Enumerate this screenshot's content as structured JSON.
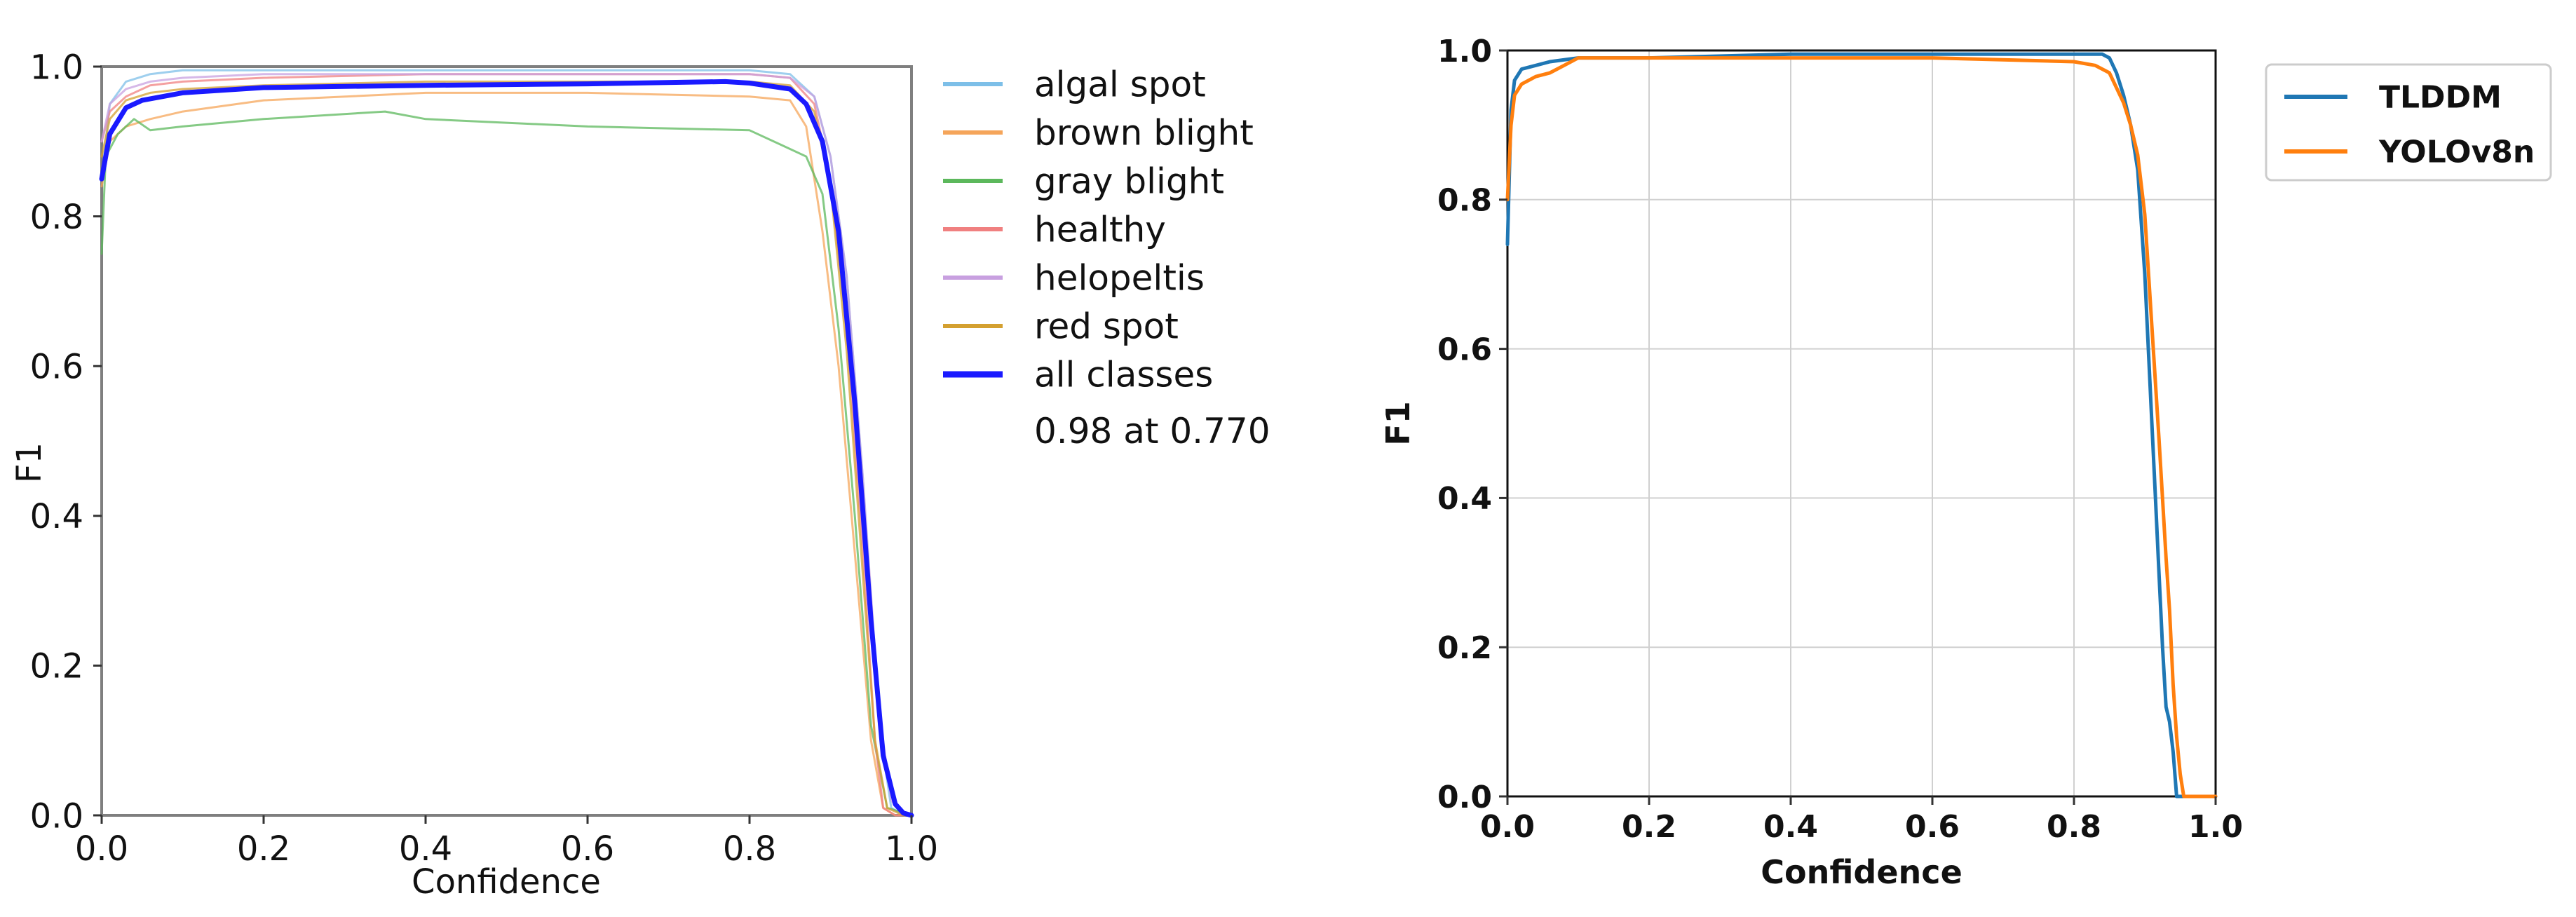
{
  "charts": [
    {
      "type": "line",
      "title": "",
      "xlabel": "Confidence",
      "ylabel": "F1",
      "xlim": [
        0,
        1
      ],
      "ylim": [
        0,
        1
      ],
      "xticks": [
        "0.0",
        "0.2",
        "0.4",
        "0.6",
        "0.8",
        "1.0"
      ],
      "yticks": [
        "0.0",
        "0.2",
        "0.4",
        "0.6",
        "0.8",
        "1.0"
      ],
      "grid": false,
      "legend_position": "outside-right",
      "legend_extra_text": "0.98 at 0.770",
      "series": [
        {
          "name": "algal spot",
          "color": "#7dbfe8",
          "width": 3,
          "opacity": 0.75,
          "x": [
            0,
            0.01,
            0.03,
            0.06,
            0.1,
            0.2,
            0.4,
            0.6,
            0.8,
            0.85,
            0.88,
            0.9,
            0.92,
            0.94,
            0.96,
            0.975,
            0.99,
            1.0
          ],
          "y": [
            0.85,
            0.95,
            0.98,
            0.99,
            0.995,
            0.995,
            0.995,
            0.995,
            0.995,
            0.99,
            0.96,
            0.88,
            0.72,
            0.45,
            0.12,
            0.01,
            0,
            0
          ]
        },
        {
          "name": "brown blight",
          "color": "#f5a55a",
          "width": 3,
          "opacity": 0.75,
          "x": [
            0,
            0.01,
            0.03,
            0.06,
            0.1,
            0.2,
            0.4,
            0.6,
            0.8,
            0.85,
            0.87,
            0.89,
            0.91,
            0.93,
            0.95,
            0.965,
            0.98,
            1.0
          ],
          "y": [
            0.84,
            0.9,
            0.92,
            0.93,
            0.94,
            0.955,
            0.965,
            0.965,
            0.96,
            0.955,
            0.92,
            0.78,
            0.6,
            0.35,
            0.1,
            0.01,
            0,
            0
          ]
        },
        {
          "name": "gray blight",
          "color": "#5cb85c",
          "width": 3,
          "opacity": 0.75,
          "x": [
            0,
            0.005,
            0.02,
            0.04,
            0.06,
            0.1,
            0.2,
            0.35,
            0.4,
            0.6,
            0.8,
            0.84,
            0.87,
            0.89,
            0.91,
            0.93,
            0.95,
            0.97,
            1.0
          ],
          "y": [
            0.75,
            0.88,
            0.91,
            0.93,
            0.915,
            0.92,
            0.93,
            0.94,
            0.93,
            0.92,
            0.915,
            0.895,
            0.88,
            0.83,
            0.65,
            0.4,
            0.12,
            0.01,
            0
          ]
        },
        {
          "name": "healthy",
          "color": "#f08080",
          "width": 3,
          "opacity": 0.75,
          "x": [
            0,
            0.01,
            0.03,
            0.06,
            0.1,
            0.2,
            0.4,
            0.6,
            0.8,
            0.85,
            0.88,
            0.9,
            0.92,
            0.94,
            0.955,
            0.965,
            0.98,
            1.0
          ],
          "y": [
            0.9,
            0.94,
            0.96,
            0.975,
            0.98,
            0.985,
            0.99,
            0.99,
            0.99,
            0.985,
            0.95,
            0.85,
            0.65,
            0.35,
            0.1,
            0.01,
            0,
            0
          ]
        },
        {
          "name": "helopeltis",
          "color": "#c8a0e0",
          "width": 3,
          "opacity": 0.75,
          "x": [
            0,
            0.01,
            0.03,
            0.06,
            0.1,
            0.2,
            0.4,
            0.6,
            0.8,
            0.85,
            0.88,
            0.9,
            0.92,
            0.94,
            0.96,
            0.975,
            0.99,
            1.0
          ],
          "y": [
            0.9,
            0.95,
            0.97,
            0.98,
            0.985,
            0.99,
            0.99,
            0.99,
            0.99,
            0.985,
            0.96,
            0.88,
            0.72,
            0.45,
            0.14,
            0.02,
            0,
            0
          ]
        },
        {
          "name": "red spot",
          "color": "#d4a030",
          "width": 3,
          "opacity": 0.75,
          "x": [
            0,
            0.01,
            0.03,
            0.06,
            0.1,
            0.2,
            0.4,
            0.6,
            0.8,
            0.85,
            0.88,
            0.9,
            0.92,
            0.94,
            0.955,
            0.97,
            0.99,
            1.0
          ],
          "y": [
            0.88,
            0.93,
            0.955,
            0.965,
            0.97,
            0.975,
            0.98,
            0.98,
            0.98,
            0.975,
            0.94,
            0.84,
            0.62,
            0.32,
            0.1,
            0.01,
            0,
            0
          ]
        },
        {
          "name": "all classes",
          "color": "#1a1aff",
          "width": 7,
          "opacity": 1,
          "x": [
            0,
            0.01,
            0.03,
            0.05,
            0.1,
            0.2,
            0.4,
            0.6,
            0.77,
            0.8,
            0.85,
            0.87,
            0.89,
            0.91,
            0.93,
            0.95,
            0.965,
            0.98,
            0.99,
            1.0
          ],
          "y": [
            0.85,
            0.91,
            0.945,
            0.955,
            0.965,
            0.972,
            0.975,
            0.977,
            0.98,
            0.978,
            0.97,
            0.95,
            0.9,
            0.78,
            0.55,
            0.26,
            0.08,
            0.015,
            0.003,
            0
          ]
        }
      ]
    },
    {
      "type": "line",
      "title": "",
      "xlabel": "Confidence",
      "ylabel": "F1",
      "xlim": [
        0,
        1
      ],
      "ylim": [
        0,
        1
      ],
      "xticks": [
        "0.0",
        "0.2",
        "0.4",
        "0.6",
        "0.8",
        "1.0"
      ],
      "yticks": [
        "0.0",
        "0.2",
        "0.4",
        "0.6",
        "0.8",
        "1.0"
      ],
      "grid": true,
      "legend_position": "outside-top-right",
      "series": [
        {
          "name": "TLDDM",
          "color": "#1f77b4",
          "width": 5,
          "opacity": 1,
          "x": [
            0,
            0.005,
            0.01,
            0.02,
            0.04,
            0.06,
            0.1,
            0.2,
            0.4,
            0.6,
            0.8,
            0.84,
            0.85,
            0.86,
            0.87,
            0.875,
            0.88,
            0.89,
            0.9,
            0.91,
            0.915,
            0.92,
            0.925,
            0.93,
            0.935,
            0.94,
            0.945,
            1.0
          ],
          "y": [
            0.74,
            0.92,
            0.96,
            0.975,
            0.98,
            0.985,
            0.99,
            0.99,
            0.995,
            0.995,
            0.995,
            0.995,
            0.99,
            0.97,
            0.94,
            0.92,
            0.9,
            0.84,
            0.7,
            0.5,
            0.4,
            0.3,
            0.2,
            0.12,
            0.1,
            0.06,
            0,
            0
          ]
        },
        {
          "name": "YOLOv8n",
          "color": "#ff7f0e",
          "width": 5,
          "opacity": 1,
          "x": [
            0,
            0.005,
            0.01,
            0.02,
            0.04,
            0.06,
            0.08,
            0.1,
            0.2,
            0.4,
            0.6,
            0.8,
            0.83,
            0.85,
            0.86,
            0.87,
            0.88,
            0.89,
            0.9,
            0.91,
            0.92,
            0.93,
            0.935,
            0.94,
            0.945,
            0.95,
            0.955,
            1.0
          ],
          "y": [
            0.8,
            0.9,
            0.94,
            0.955,
            0.965,
            0.97,
            0.98,
            0.99,
            0.99,
            0.99,
            0.99,
            0.985,
            0.98,
            0.97,
            0.95,
            0.93,
            0.9,
            0.86,
            0.78,
            0.63,
            0.48,
            0.32,
            0.25,
            0.15,
            0.08,
            0.03,
            0,
            0
          ]
        }
      ]
    }
  ]
}
